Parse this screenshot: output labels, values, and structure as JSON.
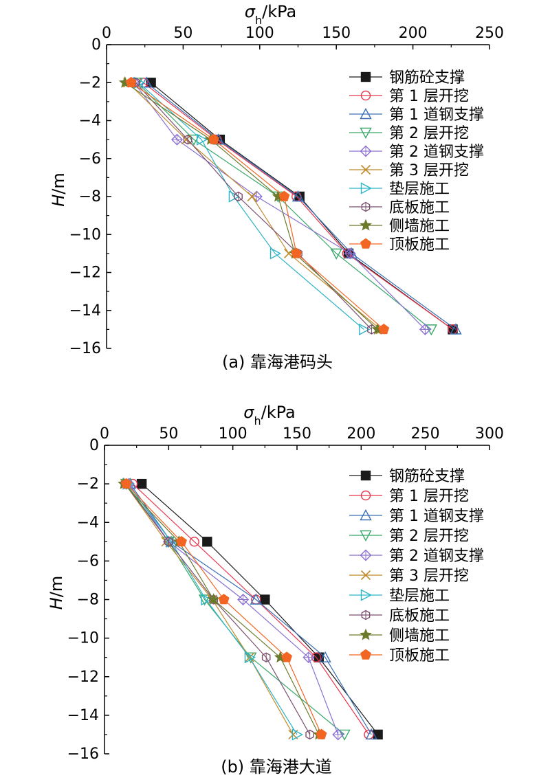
{
  "charts": [
    {
      "type": "line",
      "caption": "(a) 靠海港码头",
      "xlabel": "σh/kPa",
      "ylabel": "H/m",
      "xlim": [
        0,
        250
      ],
      "ylim": [
        -16,
        0
      ],
      "xticks": [
        0,
        50,
        100,
        150,
        200,
        250
      ],
      "yticks": [
        0,
        -2,
        -4,
        -6,
        -8,
        -10,
        -12,
        -14,
        -16
      ],
      "depths": [
        -2,
        -5,
        -8,
        -11,
        -15
      ],
      "legend_position": "top-right",
      "series": [
        {
          "name": "钢筋砼支撑",
          "color": "#1a1a1a",
          "marker": "square-filled",
          "values": [
            29,
            74,
            126,
            158,
            226
          ]
        },
        {
          "name": "第 1 层开挖",
          "color": "#e8354e",
          "marker": "circle",
          "values": [
            24,
            72,
            124,
            157,
            226
          ]
        },
        {
          "name": "第 1 道钢支撑",
          "color": "#3a6fb5",
          "marker": "triangle-up",
          "values": [
            26,
            73,
            125,
            160,
            228
          ]
        },
        {
          "name": "第 2 层开挖",
          "color": "#3aa86b",
          "marker": "triangle-down",
          "values": [
            20,
            57,
            112,
            150,
            212
          ]
        },
        {
          "name": "第 2 道钢支撑",
          "color": "#8a6fd1",
          "marker": "diamond",
          "values": [
            18,
            46,
            98,
            159,
            208
          ]
        },
        {
          "name": "第 3 层开挖",
          "color": "#c18a2b",
          "marker": "x",
          "values": [
            14,
            52,
            95,
            119,
            179
          ]
        },
        {
          "name": "垫层施工",
          "color": "#2bb3c7",
          "marker": "triangle-right",
          "values": [
            21,
            62,
            83,
            110,
            168
          ]
        },
        {
          "name": "底板施工",
          "color": "#7a4f6e",
          "marker": "hexagon",
          "values": [
            19,
            53,
            86,
            125,
            173
          ]
        },
        {
          "name": "侧墙施工",
          "color": "#6b7a2b",
          "marker": "star",
          "values": [
            12,
            68,
            112,
            123,
            177
          ]
        },
        {
          "name": "顶板施工",
          "color": "#f26522",
          "marker": "pentagon-filled",
          "values": [
            16,
            70,
            116,
            124,
            181
          ]
        }
      ]
    },
    {
      "type": "line",
      "caption": "(b) 靠海港大道",
      "xlabel": "σh/kPa",
      "ylabel": "H/m",
      "xlim": [
        0,
        300
      ],
      "ylim": [
        -16,
        0
      ],
      "xticks": [
        0,
        50,
        100,
        150,
        200,
        250,
        300
      ],
      "yticks": [
        0,
        -2,
        -4,
        -6,
        -8,
        -10,
        -12,
        -14,
        -16
      ],
      "depths": [
        -2,
        -5,
        -8,
        -11,
        -15
      ],
      "legend_position": "top-right",
      "series": [
        {
          "name": "钢筋砼支撑",
          "color": "#1a1a1a",
          "marker": "square-filled",
          "values": [
            29,
            80,
            125,
            167,
            213
          ]
        },
        {
          "name": "第 1 层开挖",
          "color": "#e8354e",
          "marker": "circle",
          "values": [
            22,
            70,
            118,
            165,
            206
          ]
        },
        {
          "name": "第 1 道钢支撑",
          "color": "#3a6fb5",
          "marker": "triangle-up",
          "values": [
            20,
            52,
            118,
            172,
            208
          ]
        },
        {
          "name": "第 2 层开挖",
          "color": "#3aa86b",
          "marker": "triangle-down",
          "values": [
            17,
            50,
            78,
            114,
            187
          ]
        },
        {
          "name": "第 2 道钢支撑",
          "color": "#8a6fd1",
          "marker": "diamond",
          "values": [
            19,
            50,
            108,
            159,
            182
          ]
        },
        {
          "name": "第 3 层开挖",
          "color": "#c18a2b",
          "marker": "x",
          "values": [
            16,
            48,
            84,
            113,
            147
          ]
        },
        {
          "name": "垫层施工",
          "color": "#2bb3c7",
          "marker": "triangle-right",
          "values": [
            18,
            52,
            79,
            113,
            150
          ]
        },
        {
          "name": "底板施工",
          "color": "#7a4f6e",
          "marker": "hexagon",
          "values": [
            16,
            50,
            85,
            126,
            160
          ]
        },
        {
          "name": "侧墙施工",
          "color": "#6b7a2b",
          "marker": "star",
          "values": [
            15,
            58,
            85,
            137,
            167
          ]
        },
        {
          "name": "顶板施工",
          "color": "#f26522",
          "marker": "pentagon-filled",
          "values": [
            17,
            60,
            93,
            142,
            169
          ]
        }
      ]
    }
  ]
}
